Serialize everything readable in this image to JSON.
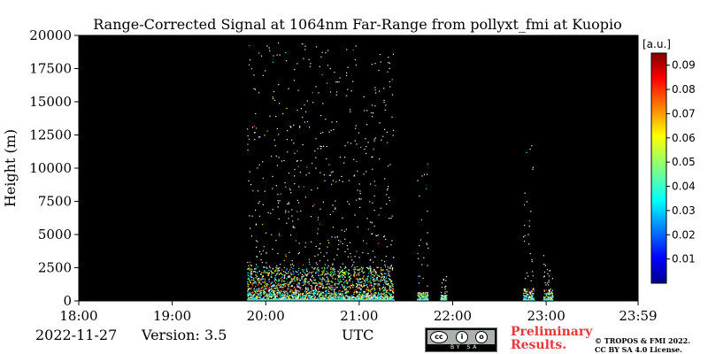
{
  "chart_data": {
    "type": "heatmap",
    "title": "Range-Corrected Signal at 1064nm Far-Range from pollyxt_fmi at Kuopio",
    "ylabel": "Height (m)",
    "xlabel": "UTC",
    "x_ticks": [
      "18:00",
      "19:00",
      "20:00",
      "21:00",
      "22:00",
      "23:00",
      "23:59"
    ],
    "y_ticks": [
      "0",
      "2500",
      "5000",
      "7500",
      "10000",
      "12500",
      "15000",
      "17500",
      "20000"
    ],
    "xlim": [
      "18:00",
      "23:59"
    ],
    "ylim": [
      0,
      20000
    ],
    "colorbar": {
      "label": "[a.u.]",
      "range": [
        0.0,
        0.095
      ],
      "ticks": [
        "0.01",
        "0.02",
        "0.03",
        "0.04",
        "0.05",
        "0.06",
        "0.07",
        "0.08",
        "0.09"
      ],
      "colormap": "jet"
    },
    "background_color": "#000000",
    "signal_regions": [
      {
        "start": "19:48",
        "end": "21:22",
        "dense_below_m": 2500,
        "sparse_up_to_m": 19500
      },
      {
        "start": "21:37",
        "end": "21:44",
        "dense_below_m": 600,
        "sparse_up_to_m": 10500
      },
      {
        "start": "21:52",
        "end": "21:56",
        "dense_below_m": 400,
        "sparse_up_to_m": 2000
      },
      {
        "start": "22:45",
        "end": "22:52",
        "dense_below_m": 900,
        "sparse_up_to_m": 13500
      },
      {
        "start": "22:58",
        "end": "23:04",
        "dense_below_m": 800,
        "sparse_up_to_m": 3500
      }
    ]
  },
  "footer": {
    "date": "2022-11-27",
    "version": "Version: 3.5",
    "time_label": "UTC",
    "license_badge": "BY SA",
    "preliminary_line1": "Preliminary",
    "preliminary_line2": "Results.",
    "copyright_line1": "© TROPOS & FMI 2022.",
    "copyright_line2": "CC BY SA 4.0 License."
  }
}
